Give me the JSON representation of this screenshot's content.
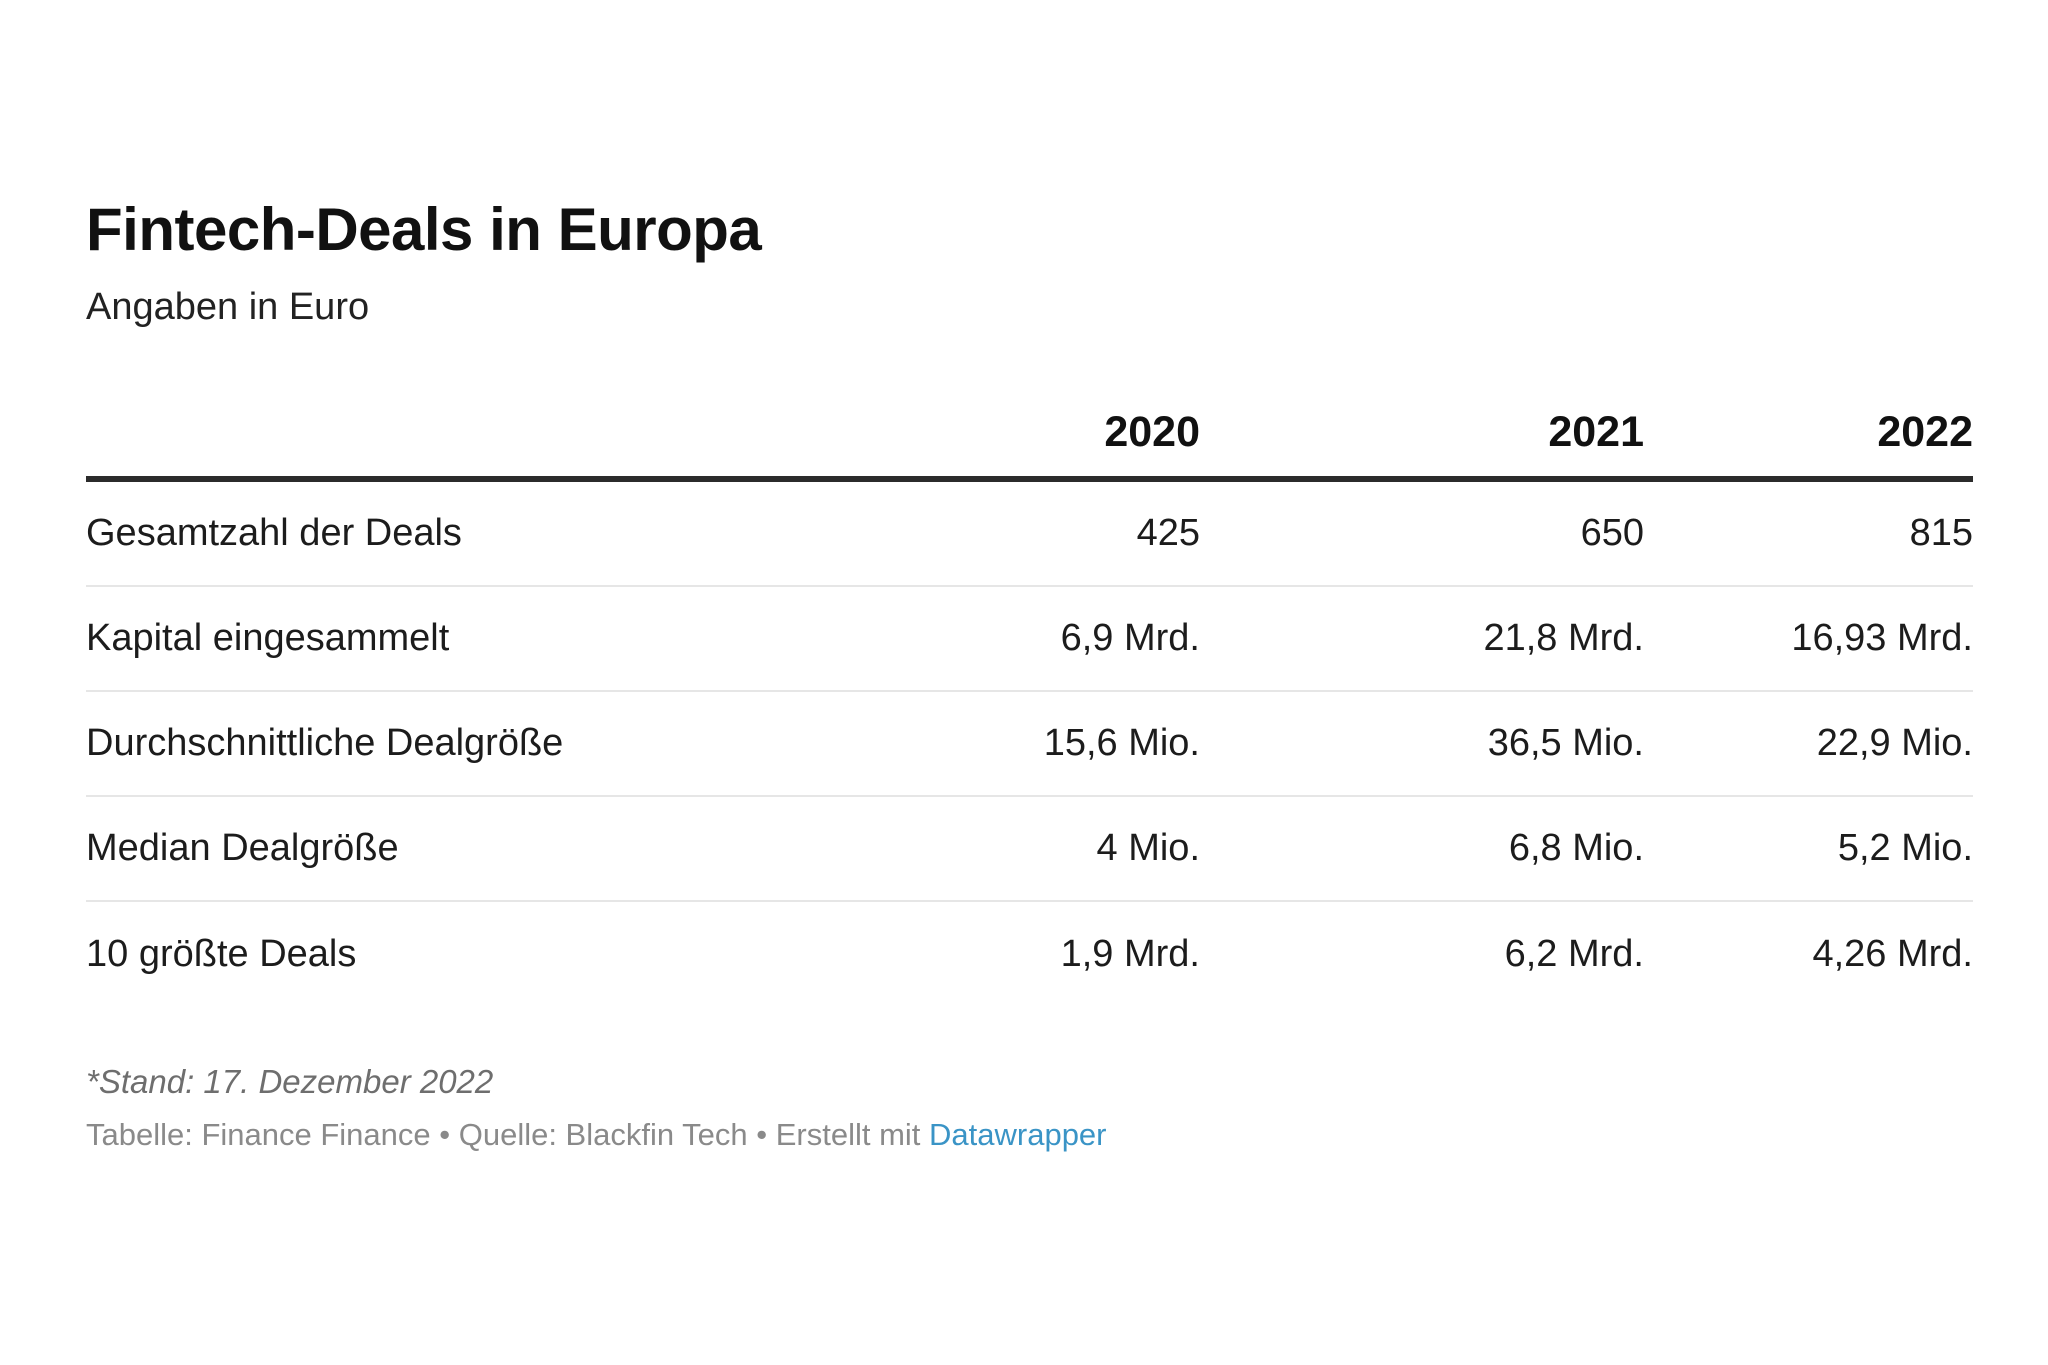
{
  "title": "Fintech-Deals in Europa",
  "subtitle": "Angaben in Euro",
  "chart_data": {
    "type": "table",
    "columns": [
      "",
      "2020",
      "2021",
      "2022"
    ],
    "rows": [
      {
        "label": "Gesamtzahl der Deals",
        "values": [
          "425",
          "650",
          "815"
        ]
      },
      {
        "label": "Kapital eingesammelt",
        "values": [
          "6,9 Mrd.",
          "21,8 Mrd.",
          "16,93 Mrd."
        ]
      },
      {
        "label": "Durchschnittliche Dealgröße",
        "values": [
          "15,6 Mio.",
          "36,5 Mio.",
          "22,9 Mio."
        ]
      },
      {
        "label": "Median Dealgröße",
        "values": [
          "4 Mio.",
          "6,8 Mio.",
          "5,2 Mio."
        ]
      },
      {
        "label": "10 größte Deals",
        "values": [
          "1,9 Mrd.",
          "6,2 Mrd.",
          "4,26 Mrd."
        ]
      }
    ]
  },
  "notes": "*Stand: 17. Dezember 2022",
  "footer": {
    "text": "Tabelle: Finance Finance • Quelle: Blackfin Tech • Erstellt mit ",
    "link": "Datawrapper"
  },
  "colors": {
    "header_rule": "#2b2b2b",
    "row_rule": "#e6e6e6",
    "link": "#3a94c6"
  }
}
